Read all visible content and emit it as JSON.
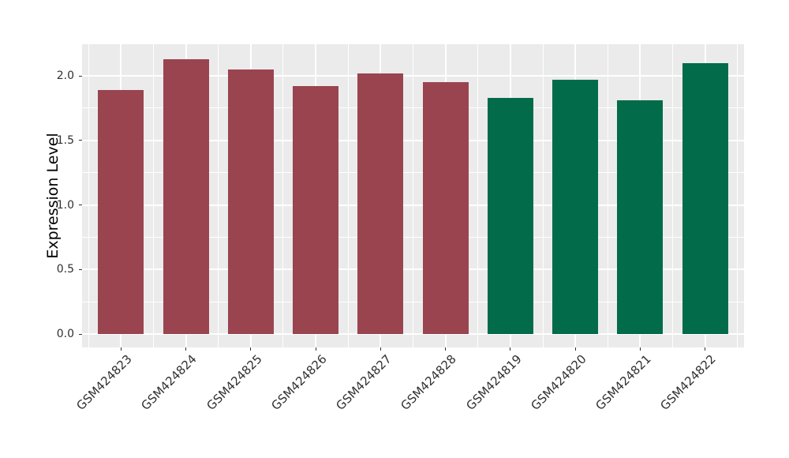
{
  "chart_data": {
    "type": "bar",
    "title": "",
    "xlabel": "",
    "ylabel": "Expression Level",
    "categories": [
      "GSM424823",
      "GSM424824",
      "GSM424825",
      "GSM424826",
      "GSM424827",
      "GSM424828",
      "GSM424819",
      "GSM424820",
      "GSM424821",
      "GSM424822"
    ],
    "values": [
      1.89,
      2.13,
      2.05,
      1.92,
      2.02,
      1.95,
      1.83,
      1.97,
      1.81,
      2.1
    ],
    "bar_groups": [
      "group1",
      "group1",
      "group1",
      "group1",
      "group1",
      "group1",
      "group2",
      "group2",
      "group2",
      "group2"
    ],
    "group_colors": {
      "group1": "#9A4450",
      "group2": "#016B4A"
    },
    "yticks": [
      0.0,
      0.5,
      1.0,
      1.5,
      2.0
    ],
    "ytick_labels": [
      "0.0",
      "0.5",
      "1.0",
      "1.5",
      "2.0"
    ],
    "ylim": [
      -0.11,
      2.24
    ],
    "grid": "major-and-minor",
    "legend": "none",
    "panel_background": "#EBEBEB",
    "grid_color": "#FFFFFF"
  }
}
